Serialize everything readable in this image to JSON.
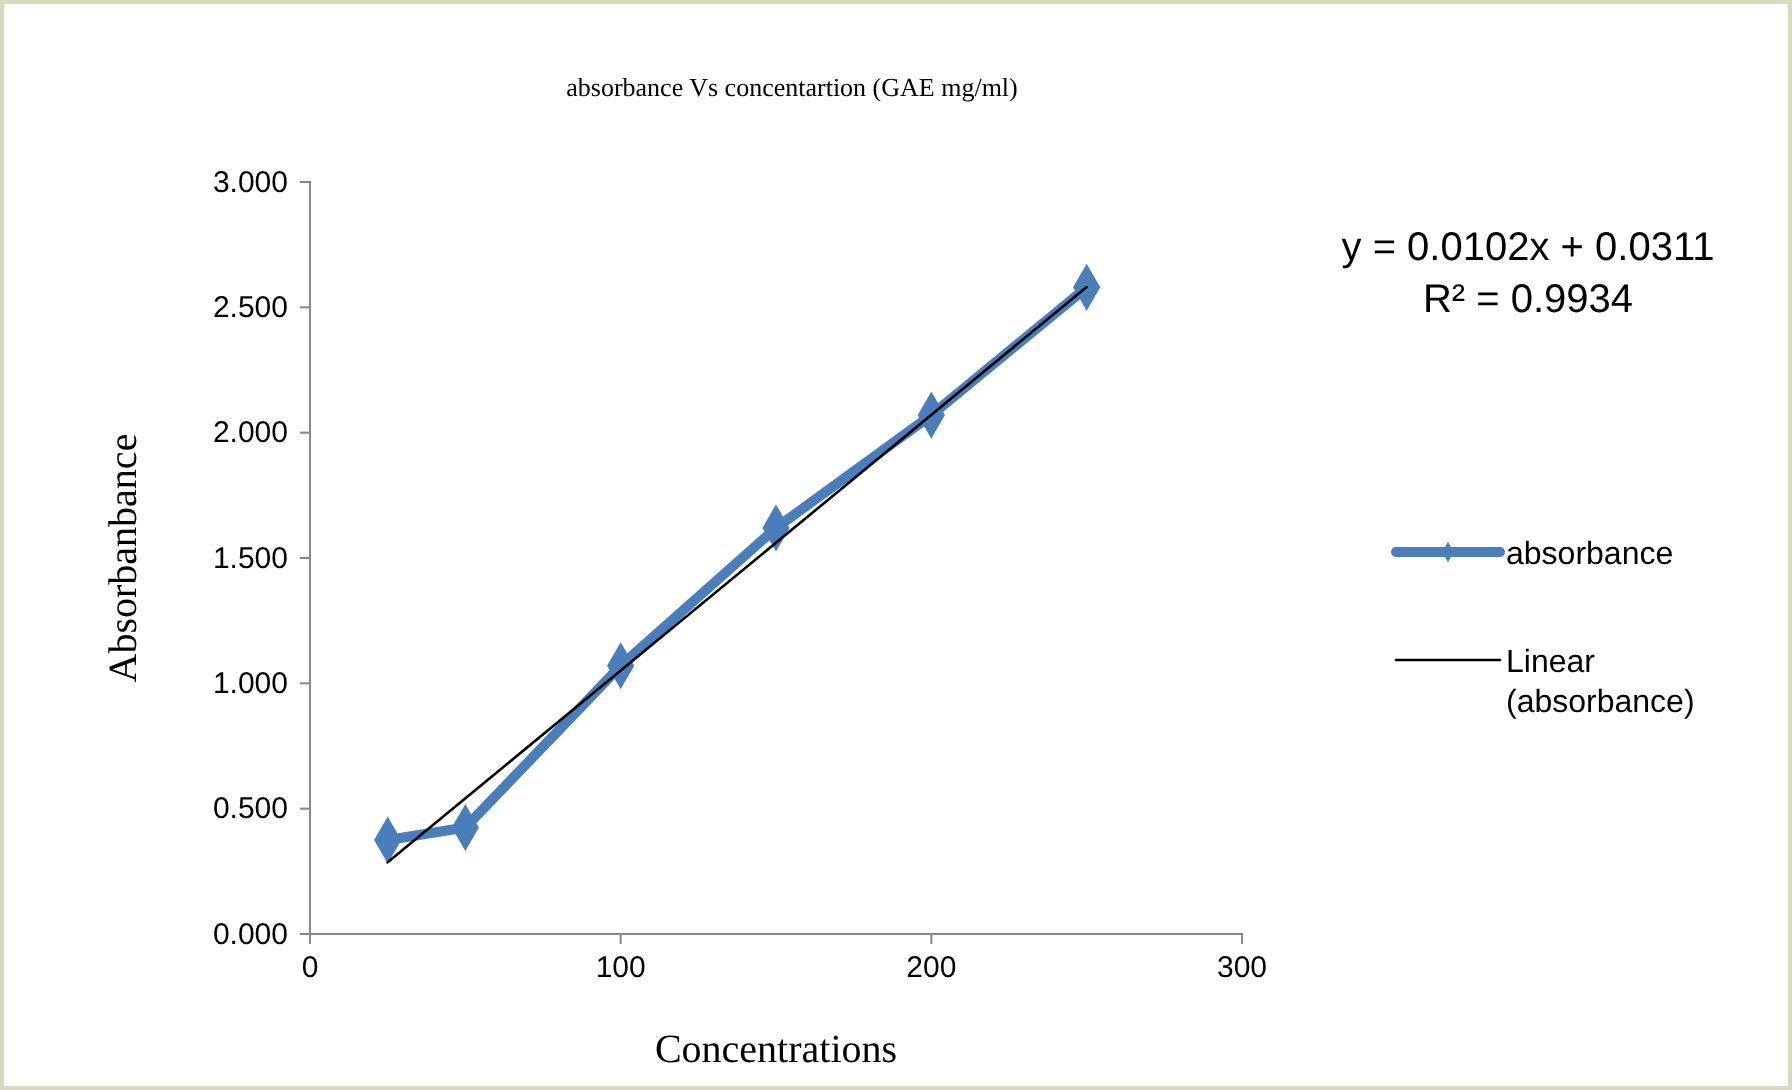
{
  "chart_data": {
    "type": "line",
    "title": "absorbance Vs concentartion (GAE mg/ml)",
    "xlabel": "Concentrations",
    "ylabel": "Absorbanbance",
    "x": [
      25,
      50,
      100,
      150,
      200,
      250
    ],
    "series": [
      {
        "name": "absorbance",
        "color": "#4a7ebb",
        "values": [
          0.375,
          0.425,
          1.07,
          1.62,
          2.07,
          2.58
        ],
        "marker": "diamond"
      },
      {
        "name": "Linear (absorbance)",
        "type": "line",
        "color": "#000000",
        "x": [
          25,
          250
        ],
        "values": [
          0.286,
          2.581
        ],
        "marker": "none"
      }
    ],
    "xlim": [
      0,
      300
    ],
    "xticks": [
      0,
      100,
      200,
      300
    ],
    "ylim": [
      0,
      3
    ],
    "yticks": [
      {
        "value": 0,
        "label": "0.000"
      },
      {
        "value": 0.5,
        "label": "0.500"
      },
      {
        "value": 1,
        "label": "1.000"
      },
      {
        "value": 1.5,
        "label": "1.500"
      },
      {
        "value": 2,
        "label": "2.000"
      },
      {
        "value": 2.5,
        "label": "2.500"
      },
      {
        "value": 3,
        "label": "3.000"
      }
    ],
    "grid": false,
    "legend": "right",
    "annotations": [
      "y = 0.0102x + 0.0311",
      "R² = 0.9934"
    ]
  }
}
